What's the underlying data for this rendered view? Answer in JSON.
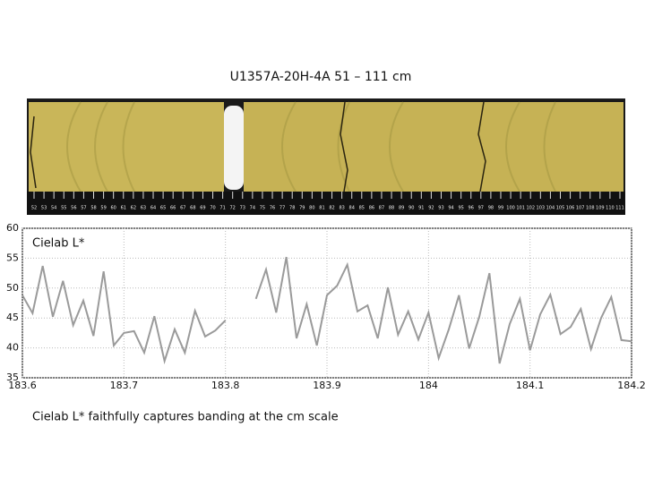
{
  "slide_title": "U1357A-20H-4A 51 – 111 cm",
  "core_image": {
    "ruler_labels": [
      52,
      53,
      54,
      55,
      56,
      57,
      58,
      59,
      60,
      61,
      62,
      63,
      64,
      65,
      66,
      67,
      68,
      69,
      70,
      71,
      72,
      73,
      74,
      75,
      76,
      77,
      78,
      79,
      80,
      81,
      82,
      83,
      84,
      85,
      86,
      87,
      88,
      89,
      90,
      91,
      92,
      93,
      94,
      95,
      96,
      97,
      98,
      99,
      100,
      101,
      102,
      103,
      104,
      105,
      106,
      107,
      108,
      109,
      110,
      111
    ]
  },
  "chart_data": {
    "type": "line",
    "y_label": "Cielab L*",
    "x": [
      183.6,
      183.61,
      183.62,
      183.63,
      183.64,
      183.65,
      183.66,
      183.67,
      183.68,
      183.69,
      183.7,
      183.71,
      183.72,
      183.73,
      183.74,
      183.75,
      183.76,
      183.77,
      183.78,
      183.79,
      183.8,
      183.81,
      183.82,
      183.83,
      183.84,
      183.85,
      183.86,
      183.87,
      183.88,
      183.89,
      183.9,
      183.91,
      183.92,
      183.93,
      183.94,
      183.95,
      183.96,
      183.97,
      183.98,
      183.99,
      184,
      184.01,
      184.02,
      184.03,
      184.04,
      184.05,
      184.06,
      184.07,
      184.08,
      184.09,
      184.1,
      184.11,
      184.12,
      184.13,
      184.14,
      184.15,
      184.16,
      184.17,
      184.18,
      184.19,
      184.2
    ],
    "series": [
      {
        "name": "Cielab L*",
        "color": "#9a9a9a",
        "values": [
          48.8,
          45.8,
          53.7,
          45.2,
          51.2,
          43.8,
          47.9,
          42.0,
          52.8,
          40.4,
          42.5,
          42.8,
          39.2,
          45.3,
          37.8,
          43.1,
          39.2,
          46.2,
          41.9,
          42.9,
          44.6,
          null,
          null,
          48.2,
          53.1,
          45.9,
          55.2,
          41.6,
          47.3,
          40.4,
          48.8,
          50.4,
          53.9,
          46.1,
          47.1,
          41.6,
          50.1,
          42.2,
          46.1,
          41.4,
          45.9,
          38.3,
          43.1,
          48.8,
          39.9,
          45.2,
          52.5,
          37.4,
          44.0,
          48.2,
          39.6,
          45.6,
          48.9,
          42.3,
          43.5,
          46.5,
          39.8,
          45.0,
          48.5,
          41.3,
          41.1
        ]
      }
    ],
    "xlim": [
      183.6,
      184.2
    ],
    "ylim": [
      35,
      60
    ],
    "xticks": [
      183.6,
      183.7,
      183.8,
      183.9,
      184,
      184.1,
      184.2
    ],
    "yticks": [
      35,
      40,
      45,
      50,
      55,
      60
    ],
    "grid": true
  },
  "caption": "Cielab L* faithfully captures banding at the cm scale"
}
